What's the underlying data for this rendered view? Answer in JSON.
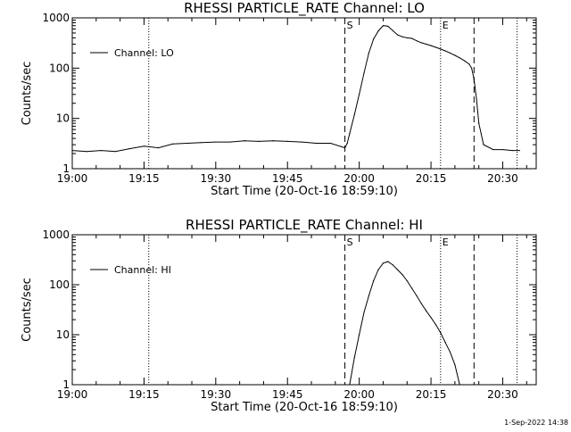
{
  "timestamp": "1-Sep-2022 14:38",
  "chart_data": [
    {
      "type": "line",
      "title": "RHESSI PARTICLE_RATE Channel: LO",
      "xlabel": "Start Time (20-Oct-16 18:59:10)",
      "ylabel": "Counts/sec",
      "y_scale": "log",
      "ylim": [
        1,
        1000
      ],
      "xlim": [
        "19:00",
        "20:37"
      ],
      "xtick_labels": [
        "19:00",
        "19:15",
        "19:30",
        "19:45",
        "20:00",
        "20:15",
        "20:30"
      ],
      "ytick_labels": [
        "1",
        "10",
        "100",
        "1000"
      ],
      "legend_position": "top-left",
      "grid": false,
      "series": [
        {
          "name": "Channel: LO",
          "x": [
            "19:00",
            "19:03",
            "19:06",
            "19:09",
            "19:12",
            "19:15",
            "19:18",
            "19:21",
            "19:24",
            "19:27",
            "19:30",
            "19:33",
            "19:36",
            "19:39",
            "19:42",
            "19:45",
            "19:48",
            "19:51",
            "19:54",
            "19:57",
            "19:57:30",
            "19:58",
            "19:59",
            "20:00",
            "20:01",
            "20:02",
            "20:03",
            "20:04",
            "20:05",
            "20:06",
            "20:07",
            "20:08",
            "20:09",
            "20:10",
            "20:11",
            "20:12",
            "20:13",
            "20:14",
            "20:15",
            "20:16",
            "20:17",
            "20:18",
            "20:19",
            "20:20",
            "20:21",
            "20:22",
            "20:23",
            "20:23:30",
            "20:24",
            "20:24:30",
            "20:25",
            "20:26",
            "20:28",
            "20:30",
            "20:32",
            "20:33:30"
          ],
          "y": [
            2.3,
            2.2,
            2.3,
            2.2,
            2.5,
            2.8,
            2.6,
            3.1,
            3.2,
            3.3,
            3.4,
            3.4,
            3.6,
            3.5,
            3.6,
            3.5,
            3.4,
            3.2,
            3.2,
            2.6,
            3.2,
            5,
            12,
            30,
            80,
            200,
            380,
            550,
            700,
            680,
            560,
            460,
            420,
            400,
            390,
            350,
            320,
            300,
            280,
            260,
            240,
            220,
            200,
            180,
            160,
            140,
            120,
            100,
            60,
            25,
            8,
            3,
            2.4,
            2.4,
            2.3,
            2.3
          ]
        }
      ],
      "annotations": [
        {
          "label": "S",
          "time": "19:57",
          "style": "dashed"
        },
        {
          "label": "E",
          "time": "20:17",
          "style": "dotted"
        }
      ],
      "markers_dashed": [
        "19:57",
        "20:24"
      ],
      "markers_dotted": [
        "19:16",
        "20:17",
        "20:33"
      ]
    },
    {
      "type": "line",
      "title": "RHESSI PARTICLE_RATE Channel: HI",
      "xlabel": "Start Time (20-Oct-16 18:59:10)",
      "ylabel": "Counts/sec",
      "y_scale": "log",
      "ylim": [
        1,
        1000
      ],
      "xlim": [
        "19:00",
        "20:37"
      ],
      "xtick_labels": [
        "19:00",
        "19:15",
        "19:30",
        "19:45",
        "20:00",
        "20:15",
        "20:30"
      ],
      "ytick_labels": [
        "1",
        "10",
        "100",
        "1000"
      ],
      "legend_position": "top-left",
      "grid": false,
      "series": [
        {
          "name": "Channel: HI",
          "x": [
            "19:58",
            "19:59",
            "20:00",
            "20:01",
            "20:02",
            "20:03",
            "20:04",
            "20:05",
            "20:06",
            "20:07",
            "20:08",
            "20:09",
            "20:10",
            "20:11",
            "20:12",
            "20:13",
            "20:14",
            "20:15",
            "20:16",
            "20:17",
            "20:18",
            "20:19",
            "20:20",
            "20:21"
          ],
          "y": [
            1.0,
            3.5,
            10,
            28,
            60,
            120,
            200,
            270,
            290,
            250,
            200,
            160,
            120,
            85,
            60,
            42,
            30,
            22,
            16,
            11,
            7,
            4.5,
            2.5,
            1.0
          ]
        }
      ],
      "annotations": [
        {
          "label": "S",
          "time": "19:57",
          "style": "dashed"
        },
        {
          "label": "E",
          "time": "20:17",
          "style": "dotted"
        }
      ],
      "markers_dashed": [
        "19:57",
        "20:24"
      ],
      "markers_dotted": [
        "19:16",
        "20:17",
        "20:33"
      ]
    }
  ]
}
